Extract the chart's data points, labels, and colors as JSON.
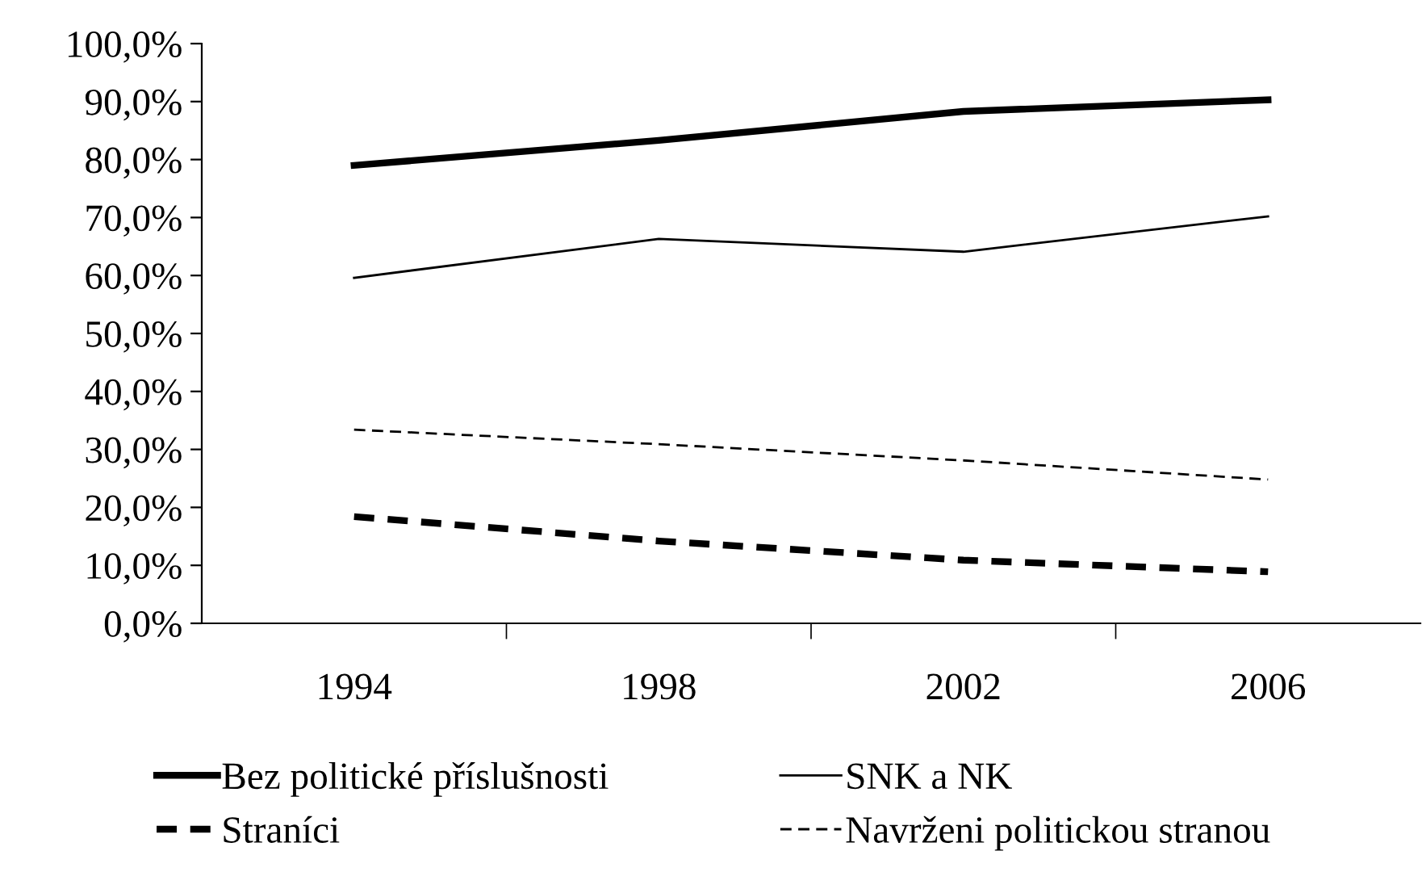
{
  "chart_data": {
    "type": "line",
    "categories": [
      "1994",
      "1998",
      "2002",
      "2006"
    ],
    "series": [
      {
        "name": "Bez politické příslušnosti",
        "color": "#000000",
        "line_style": "solid",
        "values": [
          79.0,
          83.3,
          88.3,
          90.3
        ]
      },
      {
        "name": "Straníci",
        "color": "#000000",
        "line_style": "dashed",
        "values": [
          18.4,
          14.2,
          10.9,
          8.9
        ]
      },
      {
        "name": "SNK a NK",
        "color": "#000000",
        "line_style": "solid",
        "values": [
          59.6,
          66.3,
          64.1,
          70.2
        ]
      },
      {
        "name": "Navrženi politickou stranou",
        "color": "#000000",
        "line_style": "dashed",
        "values": [
          33.4,
          30.9,
          28.1,
          24.8
        ]
      }
    ],
    "ylim": [
      0,
      100
    ],
    "yticks": [
      {
        "value": 0,
        "label": "0,0%"
      },
      {
        "value": 10,
        "label": "10,0%"
      },
      {
        "value": 20,
        "label": "20,0%"
      },
      {
        "value": 30,
        "label": "30,0%"
      },
      {
        "value": 40,
        "label": "40,0%"
      },
      {
        "value": 50,
        "label": "50,0%"
      },
      {
        "value": 60,
        "label": "60,0%"
      },
      {
        "value": 70,
        "label": "70,0%"
      },
      {
        "value": 80,
        "label": "80,0%"
      },
      {
        "value": 90,
        "label": "90,0%"
      },
      {
        "value": 100,
        "label": "100,0%"
      }
    ],
    "grid": false,
    "legend": "bottom",
    "marker": "none"
  }
}
